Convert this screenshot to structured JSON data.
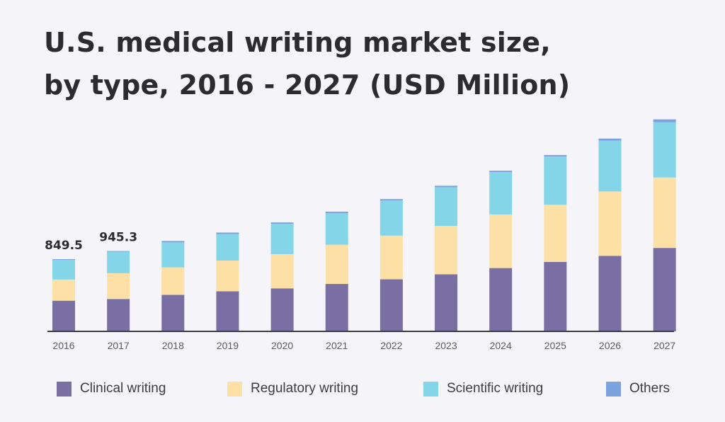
{
  "title_line1": "U.S. medical writing market size,",
  "title_line2": "by type, 2016 - 2027 (USD Million)",
  "chart_data": {
    "type": "bar",
    "stacked": true,
    "title": "U.S. medical writing market size, by type, 2016 - 2027 (USD Million)",
    "categories": [
      "2016",
      "2017",
      "2018",
      "2019",
      "2020",
      "2021",
      "2022",
      "2023",
      "2024",
      "2025",
      "2026",
      "2027"
    ],
    "series": [
      {
        "name": "Clinical writing",
        "color": "#7a6fa3",
        "values": [
          361,
          381,
          430,
          472,
          506,
          558,
          613,
          672,
          745,
          818,
          889,
          982
        ]
      },
      {
        "name": "Regulatory writing",
        "color": "#fde0a6",
        "values": [
          249,
          304,
          323,
          361,
          403,
          461,
          514,
          569,
          631,
          672,
          758,
          829
        ]
      },
      {
        "name": "Scientific writing",
        "color": "#84d5e8",
        "values": [
          230,
          252,
          294,
          313,
          356,
          373,
          413,
          456,
          498,
          569,
          597,
          651
        ]
      },
      {
        "name": "Others",
        "color": "#7da3de",
        "values": [
          9.5,
          8.3,
          17,
          17,
          17,
          17,
          17,
          17,
          17,
          17,
          25,
          33
        ]
      }
    ],
    "data_labels": [
      {
        "category": "2016",
        "text": "849.5"
      },
      {
        "category": "2017",
        "text": "945.3"
      }
    ],
    "ylim": [
      0,
      2500
    ],
    "grid": false,
    "legend": "bottom"
  }
}
